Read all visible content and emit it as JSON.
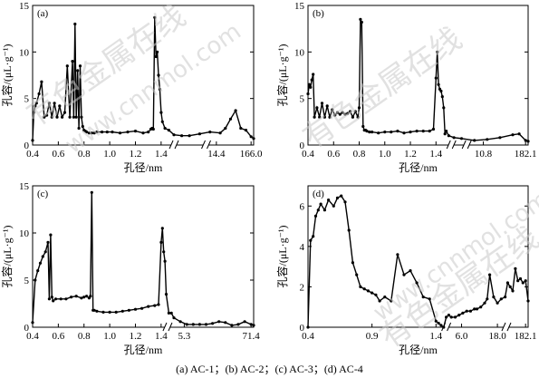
{
  "caption": "(a) AC-1；(b) AC-2；(c) AC-3；(d) AC-4",
  "watermark": [
    "有色金属在线",
    "www.cnnmol.com"
  ],
  "chart_data": [
    {
      "type": "line",
      "panel_label": "(a)",
      "xlabel": "孔径/nm",
      "ylabel": "孔容/(μL·g⁻¹)",
      "ylim": [
        0,
        15
      ],
      "yticks": [
        "0",
        "5",
        "10",
        "15"
      ],
      "xticks": [
        "0.4",
        "0.6",
        "0.8",
        "1.0",
        "1.2",
        "1.4",
        "14.4",
        "166.0"
      ],
      "x": [
        0.4,
        0.41,
        0.42,
        0.43,
        0.45,
        0.47,
        0.49,
        0.51,
        0.53,
        0.55,
        0.57,
        0.59,
        0.61,
        0.63,
        0.65,
        0.67,
        0.69,
        0.71,
        0.72,
        0.73,
        0.74,
        0.75,
        0.76,
        0.77,
        0.78,
        0.79,
        0.8,
        0.81,
        0.82,
        0.84,
        0.86,
        0.88,
        0.9,
        0.94,
        0.98,
        1.02,
        1.08,
        1.14,
        1.2,
        1.26,
        1.3,
        1.32,
        1.33,
        1.34,
        1.35,
        1.36,
        1.37,
        1.38,
        1.39,
        1.4,
        1.41,
        1.43,
        1.46,
        1.5,
        1.56,
        1.62,
        1.7,
        1.78,
        1.86,
        1.9,
        1.94,
        1.98,
        2.02,
        2.06,
        2.1,
        2.12
      ],
      "y": [
        0.5,
        3.5,
        4.2,
        4.5,
        5.5,
        6.8,
        3.0,
        3.2,
        4.5,
        3.0,
        4.5,
        3.0,
        4.2,
        3.0,
        3.5,
        8.5,
        3.0,
        9.0,
        3.0,
        13.0,
        3.0,
        8.0,
        1.8,
        8.5,
        3.0,
        2.0,
        1.6,
        1.5,
        1.4,
        1.3,
        1.3,
        1.3,
        1.4,
        1.4,
        1.4,
        1.4,
        1.3,
        1.4,
        1.5,
        1.3,
        1.4,
        1.7,
        1.8,
        1.7,
        13.7,
        9.5,
        10.0,
        7.5,
        6.0,
        3.5,
        2.5,
        1.8,
        1.6,
        1.1,
        1.0,
        1.0,
        1.2,
        1.4,
        1.3,
        1.8,
        2.8,
        3.7,
        1.8,
        1.6,
        0.9,
        0.7
      ]
    },
    {
      "type": "line",
      "panel_label": "(b)",
      "xlabel": "孔径/nm",
      "ylabel": "孔容/(μL·g⁻¹)",
      "ylim": [
        0,
        15
      ],
      "yticks": [
        "0",
        "5",
        "10",
        "15"
      ],
      "xticks": [
        "0.4",
        "0.6",
        "0.8",
        "1.0",
        "1.2",
        "1.4",
        "10.8",
        "182.1"
      ],
      "x": [
        0.4,
        0.41,
        0.42,
        0.43,
        0.44,
        0.45,
        0.47,
        0.49,
        0.51,
        0.53,
        0.55,
        0.57,
        0.59,
        0.61,
        0.63,
        0.65,
        0.67,
        0.69,
        0.71,
        0.73,
        0.75,
        0.77,
        0.79,
        0.8,
        0.81,
        0.82,
        0.83,
        0.84,
        0.85,
        0.86,
        0.88,
        0.9,
        0.95,
        1.0,
        1.05,
        1.1,
        1.15,
        1.2,
        1.25,
        1.3,
        1.35,
        1.38,
        1.4,
        1.41,
        1.42,
        1.43,
        1.44,
        1.45,
        1.46,
        1.47,
        1.48,
        1.5,
        1.54,
        1.6,
        1.7,
        1.8,
        1.9,
        2.0,
        2.05,
        2.1,
        2.12
      ],
      "y": [
        5.5,
        6.5,
        6.2,
        7.0,
        7.6,
        3.0,
        4.0,
        3.0,
        4.5,
        3.0,
        4.2,
        3.0,
        3.8,
        3.2,
        3.5,
        3.3,
        3.5,
        3.3,
        3.4,
        3.6,
        3.0,
        3.6,
        3.0,
        4.0,
        13.5,
        13.2,
        2.0,
        1.6,
        1.6,
        1.5,
        1.4,
        1.4,
        1.3,
        1.4,
        1.4,
        1.5,
        1.3,
        1.4,
        1.5,
        1.5,
        1.5,
        1.7,
        7.2,
        10.0,
        6.5,
        6.0,
        5.8,
        5.2,
        4.0,
        1.2,
        1.5,
        1.0,
        0.8,
        0.7,
        0.5,
        0.6,
        0.8,
        1.1,
        1.2,
        0.5,
        0.4
      ]
    },
    {
      "type": "line",
      "panel_label": "(c)",
      "xlabel": "孔径/nm",
      "ylabel": "孔容/(μL·g⁻¹)",
      "ylim": [
        0,
        15
      ],
      "yticks": [
        "0",
        "5",
        "10",
        "15"
      ],
      "xticks": [
        "0.4",
        "0.6",
        "0.8",
        "1.0",
        "1.2",
        "1.4",
        "5.3",
        "71.4"
      ],
      "x": [
        0.4,
        0.42,
        0.44,
        0.46,
        0.48,
        0.5,
        0.52,
        0.53,
        0.54,
        0.55,
        0.56,
        0.58,
        0.62,
        0.66,
        0.7,
        0.74,
        0.78,
        0.8,
        0.82,
        0.84,
        0.85,
        0.86,
        0.87,
        0.88,
        0.9,
        0.95,
        1.0,
        1.05,
        1.1,
        1.15,
        1.2,
        1.25,
        1.3,
        1.35,
        1.38,
        1.4,
        1.41,
        1.42,
        1.43,
        1.44,
        1.46,
        1.48,
        1.5,
        1.55,
        1.6,
        1.65,
        1.7,
        1.75,
        1.8,
        1.85,
        1.9,
        1.95,
        2.0,
        2.05,
        2.1,
        2.12
      ],
      "y": [
        0.5,
        5.0,
        6.0,
        6.8,
        7.5,
        8.0,
        9.0,
        3.0,
        9.8,
        3.2,
        2.8,
        3.0,
        3.0,
        3.0,
        3.2,
        3.3,
        3.1,
        3.2,
        3.3,
        3.1,
        3.3,
        14.3,
        1.8,
        1.8,
        1.7,
        1.6,
        1.6,
        1.6,
        1.7,
        1.8,
        1.9,
        2.0,
        2.2,
        2.3,
        2.4,
        9.0,
        10.5,
        8.0,
        7.0,
        3.5,
        1.5,
        1.5,
        1.0,
        0.6,
        0.3,
        0.3,
        0.3,
        0.3,
        0.4,
        0.6,
        0.5,
        0.2,
        0.3,
        0.6,
        0.3,
        0.2
      ]
    },
    {
      "type": "line",
      "panel_label": "(d)",
      "xlabel": "孔径/nm",
      "ylabel": "孔容/(μL·g⁻¹)",
      "ylim": [
        0,
        7
      ],
      "yticks": [
        "0",
        "2",
        "4",
        "6"
      ],
      "xticks": [
        "0.4",
        "0.9",
        "1.4",
        "6.0",
        "18.0",
        "182.1"
      ],
      "x": [
        0.4,
        0.42,
        0.44,
        0.46,
        0.48,
        0.5,
        0.53,
        0.56,
        0.6,
        0.63,
        0.66,
        0.69,
        0.72,
        0.75,
        0.78,
        0.81,
        0.84,
        0.87,
        0.9,
        0.93,
        0.96,
        1.0,
        1.05,
        1.1,
        1.15,
        1.2,
        1.25,
        1.3,
        1.35,
        1.4,
        1.42,
        1.44,
        1.46,
        1.48,
        1.5,
        1.52,
        1.55,
        1.58,
        1.61,
        1.64,
        1.67,
        1.7,
        1.72,
        1.75,
        1.78,
        1.8,
        1.82,
        1.85,
        1.88,
        1.91,
        1.94,
        1.96,
        1.98,
        2.0,
        2.02,
        2.04,
        2.06,
        2.08,
        2.1,
        2.12
      ],
      "y": [
        0.0,
        4.3,
        4.5,
        5.5,
        5.8,
        6.1,
        5.8,
        6.3,
        6.0,
        6.4,
        6.5,
        6.2,
        4.8,
        3.2,
        2.6,
        2.0,
        1.9,
        1.8,
        1.7,
        1.6,
        1.3,
        1.5,
        1.3,
        3.6,
        2.6,
        2.8,
        2.2,
        1.5,
        1.4,
        0.3,
        0.2,
        0.1,
        0.0,
        0.5,
        0.6,
        0.5,
        0.5,
        0.6,
        0.7,
        0.8,
        0.8,
        0.9,
        0.9,
        1.0,
        1.2,
        1.4,
        2.6,
        1.5,
        1.2,
        1.4,
        1.5,
        2.2,
        2.0,
        1.8,
        2.9,
        2.3,
        2.4,
        2.2,
        2.3,
        1.3
      ]
    }
  ]
}
